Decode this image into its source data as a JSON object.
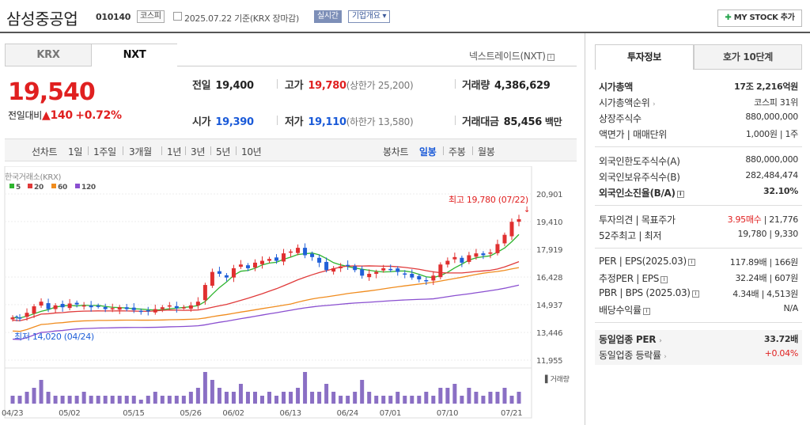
{
  "header": {
    "name": "삼성중공업",
    "code": "010140",
    "market": "코스피",
    "date": "2025.07.22 기준(KRX 장마감)",
    "realtime": "실시간",
    "company": "기업개요 ▾",
    "mystock": "MY STOCK 추가"
  },
  "tabs": {
    "krx": "KRX",
    "nxt": "NXT",
    "nxt_link": "넥스트레이드(NXT)"
  },
  "quote": {
    "price": "19,540",
    "change_label": "전일대비",
    "change_arrow": "▲",
    "change": "140",
    "change_pct": "+0.72%",
    "prev_k": "전일",
    "prev_v": "19,400",
    "high_k": "고가",
    "high_v": "19,780",
    "high_s": "(상한가 25,200)",
    "volume_k": "거래량",
    "volume_v": "4,386,629",
    "open_k": "시가",
    "open_v": "19,390",
    "low_k": "저가",
    "low_v": "19,110",
    "low_s": "(하한가 13,580)",
    "amount_k": "거래대금",
    "amount_v": "85,456",
    "amount_u": "백만"
  },
  "range": {
    "line": "선차트",
    "d1": "1일",
    "w1": "1주일",
    "m3": "3개월",
    "y1": "1년",
    "y3": "3년",
    "y5": "5년",
    "y10": "10년",
    "candle": "봉차트",
    "daily": "일봉",
    "weekly": "주봉",
    "monthly": "월봉"
  },
  "chart_data": {
    "type": "candlestick",
    "source": "한국거래소(KRX)",
    "ma_legend": [
      {
        "name": "5",
        "color": "#2fb52f"
      },
      {
        "name": "20",
        "color": "#e03a3a"
      },
      {
        "name": "60",
        "color": "#f08c1e"
      },
      {
        "name": "120",
        "color": "#8a4fd0"
      }
    ],
    "yticks": [
      "20,901",
      "19,410",
      "17,919",
      "16,428",
      "14,937",
      "13,446",
      "11,955"
    ],
    "ylim": [
      11955,
      20901
    ],
    "xticks": [
      "04/23",
      "05/02",
      "05/15",
      "05/26",
      "06/02",
      "06/13",
      "06/24",
      "07/01",
      "07/10",
      "07/21"
    ],
    "high_label": "최고 19,780 (07/22)",
    "low_label": "최저 14,020 (04/24)",
    "volume_label": "거래량",
    "closes": [
      14250,
      14200,
      14500,
      14850,
      15100,
      14700,
      14900,
      14800,
      15000,
      14950,
      14900,
      14800,
      14850,
      14700,
      14750,
      14800,
      14700,
      14650,
      14600,
      14600,
      14700,
      14800,
      14900,
      14750,
      14800,
      14900,
      15100,
      16000,
      16700,
      16600,
      16400,
      16900,
      17100,
      16900,
      17200,
      17300,
      17400,
      17300,
      17700,
      17800,
      18000,
      17600,
      17500,
      17200,
      16800,
      16900,
      17000,
      17050,
      16800,
      16500,
      16600,
      16700,
      16900,
      16850,
      16700,
      16600,
      16400,
      16300,
      16200,
      16500,
      17100,
      17300,
      17500,
      17200,
      17600,
      17700,
      17600,
      17750,
      18200,
      18700,
      19400,
      19540
    ],
    "volumes": [
      2,
      2,
      3,
      4,
      6,
      3,
      2,
      2,
      2,
      2,
      3,
      2,
      2,
      2,
      2,
      2,
      2,
      2,
      1,
      2,
      3,
      2,
      2,
      2,
      2,
      3,
      4,
      8,
      6,
      4,
      3,
      3,
      5,
      3,
      3,
      2,
      3,
      2,
      3,
      3,
      4,
      8,
      3,
      3,
      5,
      3,
      2,
      2,
      3,
      6,
      3,
      2,
      2,
      2,
      3,
      2,
      2,
      2,
      3,
      2,
      4,
      4,
      5,
      2,
      4,
      3,
      2,
      3,
      3,
      4,
      2,
      3
    ]
  },
  "rpanel": {
    "tab1": "투자정보",
    "tab2": "호가 10단계",
    "r1k": "시가총액",
    "r1v": "17조 2,216억원",
    "r2k": "시가총액순위",
    "r2v": "코스피 31위",
    "r3k": "상장주식수",
    "r3v": "880,000,000",
    "r4k": "액면가 | 매매단위",
    "r4v": "1,000원 | 1주",
    "r5k": "외국인한도주식수(A)",
    "r5v": "880,000,000",
    "r6k": "외국인보유주식수(B)",
    "r6v": "282,484,474",
    "r7k": "외국인소진율(B/A)",
    "r7v": "32.10%",
    "r8k": "투자의견 | 목표주가",
    "r8v1": "3.95매수",
    "r8v2": " | 21,776",
    "r9k": "52주최고 | 최저",
    "r9v": "19,780 | 9,330",
    "r10k": "PER | EPS(2025.03)",
    "r10v": "117.89배 | 166원",
    "r11k": "추정PER | EPS",
    "r11v": "32.24배 | 607원",
    "r12k": "PBR | BPS (2025.03)",
    "r12v": "4.34배 | 4,513원",
    "r13k": "배당수익률",
    "r13v": "N/A",
    "r14k": "동일업종 PER",
    "r14v": "33.72배",
    "r15k": "동일업종 등락률",
    "r15v": "+0.04%"
  }
}
